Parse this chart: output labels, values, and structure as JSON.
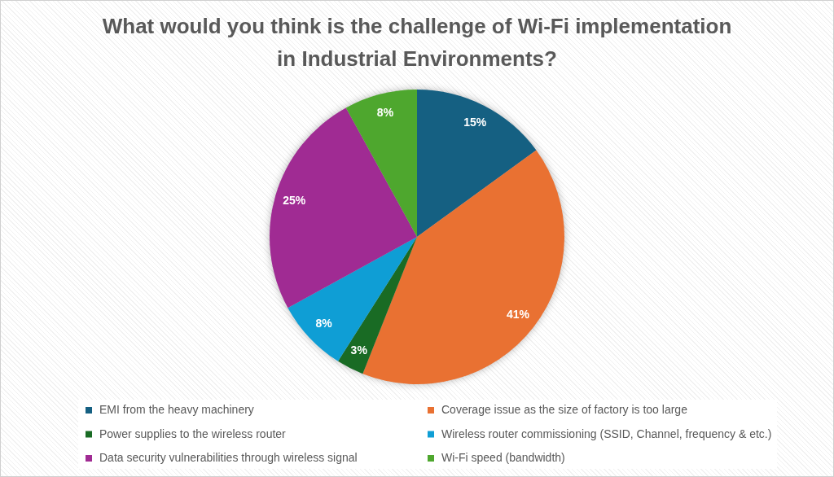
{
  "chart_data": {
    "type": "pie",
    "title": "What would you think is the challenge of Wi-Fi implementation in Industrial Environments?",
    "categories": [
      "EMI from the heavy machinery",
      "Coverage issue as the size of factory is too large",
      "Power supplies to the wireless router",
      "Wireless router commissioning (SSID, Channel, frequency & etc.)",
      "Data security vulnerabilities through wireless signal",
      "Wi-Fi speed (bandwidth)"
    ],
    "values": [
      15,
      41,
      3,
      8,
      25,
      8
    ],
    "colors": [
      "#156082",
      "#e97132",
      "#196b24",
      "#0f9ed5",
      "#a02b93",
      "#4ea72e"
    ],
    "value_labels": [
      "15%",
      "41%",
      "3%",
      "8%",
      "25%",
      "8%"
    ],
    "legend": "bottom"
  }
}
